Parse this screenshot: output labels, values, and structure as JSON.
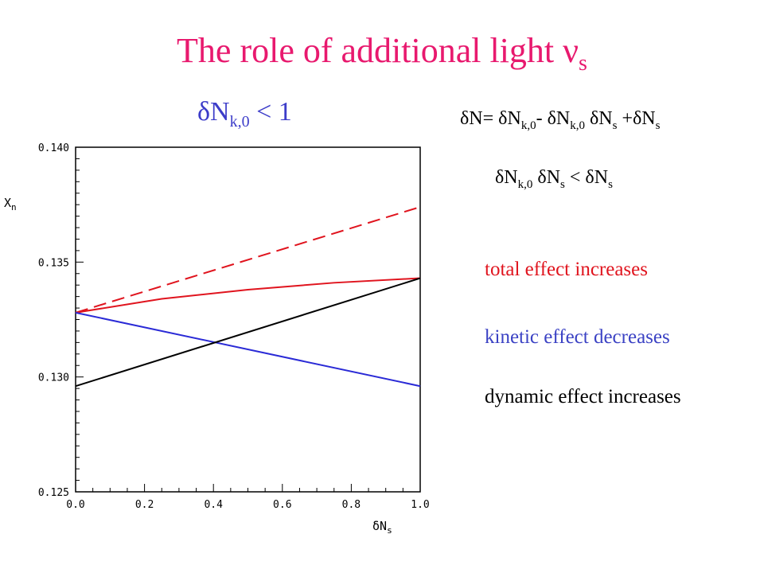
{
  "slide": {
    "title_main": "The  role of additional light  ν",
    "title_sub": "s",
    "condition": {
      "lhs": "δN",
      "sub": "k,0",
      "rhs": " < 1"
    },
    "equation1": [
      {
        "t": "δN= δN"
      },
      {
        "s": "k,0"
      },
      {
        "t": "- δN"
      },
      {
        "s": "k,0"
      },
      {
        "t": " δN"
      },
      {
        "s": "s"
      },
      {
        "t": " +δN"
      },
      {
        "s": "s"
      }
    ],
    "equation2": [
      {
        "t": "δN"
      },
      {
        "s": "k,0"
      },
      {
        "t": " δN"
      },
      {
        "s": "s"
      },
      {
        "t": " < δN"
      },
      {
        "s": "s"
      }
    ],
    "effects": {
      "total": "total effect increases",
      "kinetic": "kinetic effect decreases",
      "dynamic": "dynamic effect increases"
    },
    "colors": {
      "title": "#e8196e",
      "condition": "#3d3dc9",
      "red": "#e0141e",
      "blue": "#2a2ad6",
      "black": "#000000"
    }
  },
  "chart_data": {
    "type": "line",
    "xlabel": "δN",
    "xlabel_sub": "s",
    "ylabel": "X",
    "ylabel_sub": "n",
    "xlim": [
      0.0,
      1.0
    ],
    "ylim": [
      0.125,
      0.14
    ],
    "xticks": [
      "0.0",
      "0.2",
      "0.4",
      "0.6",
      "0.8",
      "1.0"
    ],
    "yticks": [
      "0.140",
      "0.135",
      "0.130",
      "0.125"
    ],
    "grid": false,
    "series": [
      {
        "color": "#e0141e",
        "style": "dashed",
        "x": [
          0.0,
          1.0
        ],
        "y": [
          0.1328,
          0.1374
        ]
      },
      {
        "color": "#e0141e",
        "style": "solid",
        "x": [
          0.0,
          0.25,
          0.5,
          0.75,
          1.0
        ],
        "y": [
          0.1328,
          0.1334,
          0.1338,
          0.1341,
          0.1343
        ]
      },
      {
        "color": "#2a2ad6",
        "style": "solid",
        "x": [
          0.0,
          1.0
        ],
        "y": [
          0.1328,
          0.1296
        ]
      },
      {
        "color": "#000000",
        "style": "solid",
        "x": [
          0.0,
          1.0
        ],
        "y": [
          0.1296,
          0.1343
        ]
      }
    ]
  }
}
